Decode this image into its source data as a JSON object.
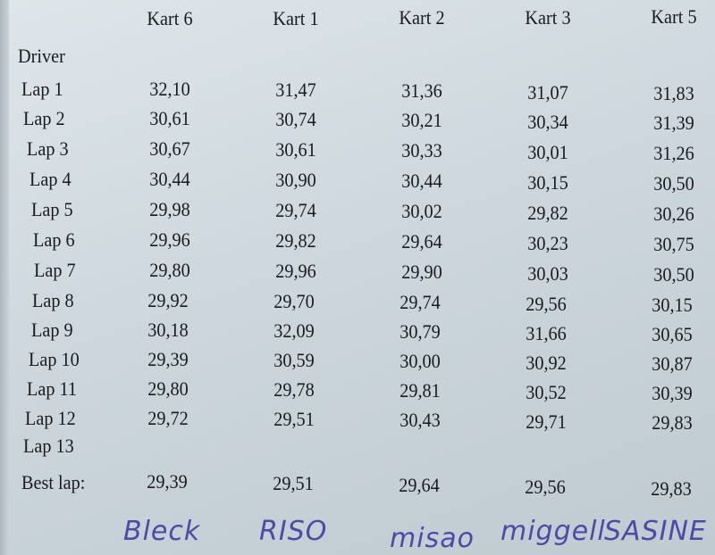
{
  "columns": [
    "Kart 6",
    "Kart 1",
    "Kart 2",
    "Kart 3",
    "Kart 5"
  ],
  "driver_label": "Driver",
  "laps": [
    {
      "label": "Lap 1",
      "times": [
        "32,10",
        "31,47",
        "31,36",
        "31,07",
        "31,83"
      ]
    },
    {
      "label": "Lap 2",
      "times": [
        "30,61",
        "30,74",
        "30,21",
        "30,34",
        "31,39"
      ]
    },
    {
      "label": "Lap 3",
      "times": [
        "30,67",
        "30,61",
        "30,33",
        "30,01",
        "31,26"
      ]
    },
    {
      "label": "Lap 4",
      "times": [
        "30,44",
        "30,90",
        "30,44",
        "30,15",
        "30,50"
      ]
    },
    {
      "label": "Lap 5",
      "times": [
        "29,98",
        "29,74",
        "30,02",
        "29,82",
        "30,26"
      ]
    },
    {
      "label": "Lap 6",
      "times": [
        "29,96",
        "29,82",
        "29,64",
        "30,23",
        "30,75"
      ]
    },
    {
      "label": "Lap 7",
      "times": [
        "29,80",
        "29,96",
        "29,90",
        "30,03",
        "30,50"
      ]
    },
    {
      "label": "Lap 8",
      "times": [
        "29,92",
        "29,70",
        "29,74",
        "29,56",
        "30,15"
      ]
    },
    {
      "label": "Lap 9",
      "times": [
        "30,18",
        "32,09",
        "30,79",
        "31,66",
        "30,65"
      ]
    },
    {
      "label": "Lap 10",
      "times": [
        "29,39",
        "30,59",
        "30,00",
        "30,92",
        "30,87"
      ]
    },
    {
      "label": "Lap 11",
      "times": [
        "29,80",
        "29,78",
        "29,81",
        "30,52",
        "30,39"
      ]
    },
    {
      "label": "Lap 12",
      "times": [
        "29,72",
        "29,51",
        "30,43",
        "29,71",
        "29,83"
      ]
    },
    {
      "label": "Lap 13",
      "times": [
        "",
        "",
        "",
        "",
        ""
      ]
    }
  ],
  "best_lap": {
    "label": "Best lap:",
    "times": [
      "29,39",
      "29,51",
      "29,64",
      "29,56",
      "29,83"
    ]
  },
  "handwritten_names": [
    "Bleck",
    "RISO",
    "misao",
    "miggell",
    "SASINE"
  ],
  "colors": {
    "ink": "#1b1b1d",
    "pen": "#4b4aa6",
    "paper": "#cdd7dd"
  }
}
